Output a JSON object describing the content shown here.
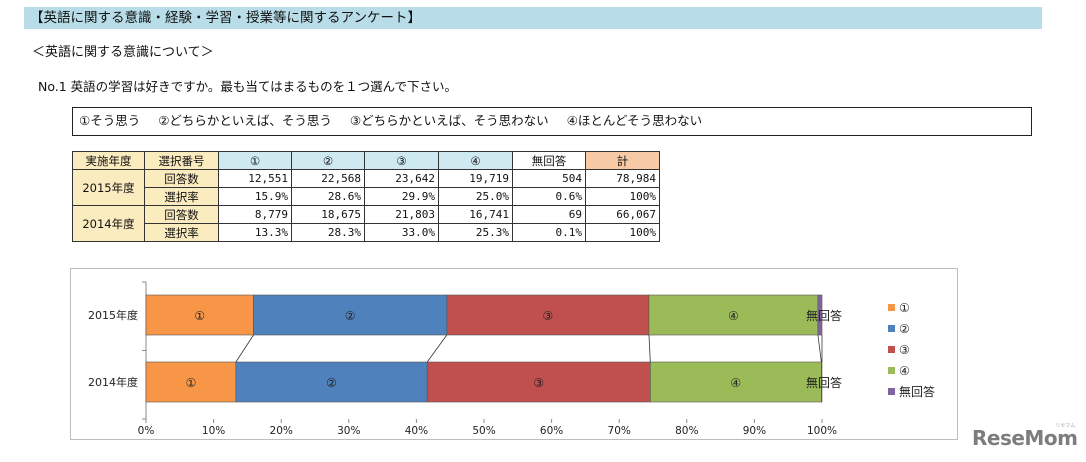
{
  "header": {
    "title": "【英語に関する意識・経験・学習・授業等に関するアンケート】"
  },
  "section_title": "＜英語に関する意識について＞",
  "question": "No.1 英語の学習は好きですか。最も当てはまるものを１つ選んで下さい。",
  "options": [
    "①そう思う",
    "②どちらかといえば、そう思う",
    "③どちらかといえば、そう思わない",
    "④ほとんどそう思わない"
  ],
  "table": {
    "headers": [
      "実施年度",
      "選択番号",
      "①",
      "②",
      "③",
      "④",
      "無回答",
      "計"
    ],
    "rows": [
      {
        "year": "2015年度",
        "kind1": "回答数",
        "vals1": [
          "12,551",
          "22,568",
          "23,642",
          "19,719",
          "504",
          "78,984"
        ],
        "kind2": "選択率",
        "vals2": [
          "15.9%",
          "28.6%",
          "29.9%",
          "25.0%",
          "0.6%",
          "100%"
        ]
      },
      {
        "year": "2014年度",
        "kind1": "回答数",
        "vals1": [
          "8,779",
          "18,675",
          "21,803",
          "16,741",
          "69",
          "66,067"
        ],
        "kind2": "選択率",
        "vals2": [
          "13.3%",
          "28.3%",
          "33.0%",
          "25.3%",
          "0.1%",
          "100%"
        ]
      }
    ]
  },
  "chart_data": {
    "type": "bar",
    "orientation": "horizontal",
    "stacked": true,
    "categories": [
      "2015年度",
      "2014年度"
    ],
    "series": [
      {
        "name": "①",
        "values": [
          15.9,
          13.3
        ],
        "color": "#f79646"
      },
      {
        "name": "②",
        "values": [
          28.6,
          28.3
        ],
        "color": "#4f81bd"
      },
      {
        "name": "③",
        "values": [
          29.9,
          33.0
        ],
        "color": "#c0504d"
      },
      {
        "name": "④",
        "values": [
          25.0,
          25.3
        ],
        "color": "#9bbb59"
      },
      {
        "name": "無回答",
        "values": [
          0.6,
          0.1
        ],
        "color": "#8064a2"
      }
    ],
    "xlim": [
      0,
      100
    ],
    "xticks": [
      "0%",
      "10%",
      "20%",
      "30%",
      "40%",
      "50%",
      "60%",
      "70%",
      "80%",
      "90%",
      "100%"
    ],
    "grid": false,
    "series_lines": true,
    "legend": "right"
  },
  "watermark": {
    "text": "ReseMom",
    "small": "リセマム"
  }
}
